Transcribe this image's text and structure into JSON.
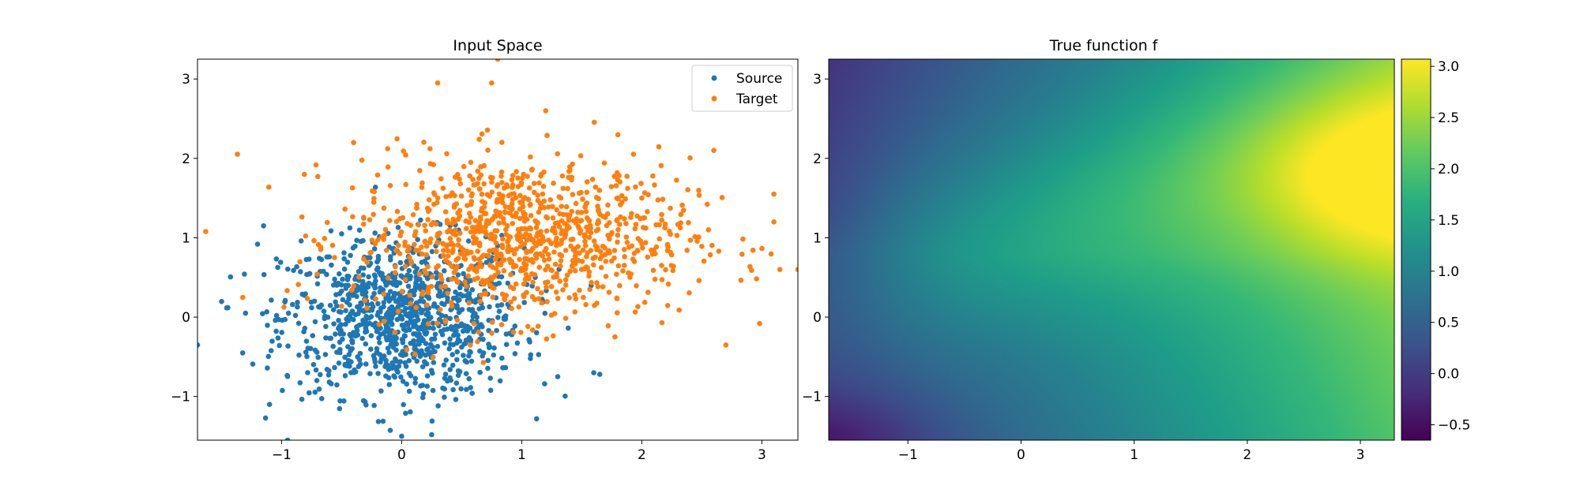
{
  "chart_data": [
    {
      "type": "scatter",
      "title": "Input Space",
      "xlim": [
        -1.7,
        3.3
      ],
      "ylim": [
        -1.55,
        3.25
      ],
      "xticks": [
        "−1",
        "0",
        "1",
        "2",
        "3"
      ],
      "yticks": [
        "−1",
        "0",
        "1",
        "2",
        "3"
      ],
      "legend_position": "top-right",
      "series": [
        {
          "name": "Source",
          "color": "#1f77b4",
          "center": [
            0.0,
            0.0
          ],
          "std": [
            0.5,
            0.5
          ],
          "count": 1000,
          "points_sample": [
            [
              -1.7,
              -0.35
            ],
            [
              -1.15,
              1.15
            ],
            [
              -1.2,
              0.92
            ],
            [
              -1.1,
              -1.1
            ],
            [
              -0.95,
              -1.55
            ],
            [
              -0.5,
              1.05
            ],
            [
              0.0,
              -1.5
            ],
            [
              0.25,
              -1.48
            ],
            [
              1.3,
              -0.75
            ],
            [
              1.6,
              -0.7
            ],
            [
              1.65,
              -0.72
            ],
            [
              -1.3,
              0.05
            ],
            [
              0.0,
              0.0
            ],
            [
              0.2,
              -0.1
            ],
            [
              -0.3,
              0.2
            ]
          ]
        },
        {
          "name": "Target",
          "color": "#ff7f0e",
          "center": [
            1.0,
            1.0
          ],
          "std": [
            0.7,
            0.5
          ],
          "count": 1000,
          "points_sample": [
            [
              0.8,
              3.25
            ],
            [
              0.3,
              2.95
            ],
            [
              0.75,
              2.95
            ],
            [
              3.3,
              0.6
            ],
            [
              3.15,
              0.6
            ],
            [
              2.7,
              -0.35
            ],
            [
              3.1,
              1.55
            ],
            [
              3.1,
              1.2
            ],
            [
              2.6,
              2.1
            ],
            [
              -0.4,
              2.2
            ],
            [
              1.2,
              2.6
            ],
            [
              1.8,
              1.5
            ],
            [
              2.0,
              1.5
            ]
          ]
        }
      ]
    },
    {
      "type": "heatmap",
      "title": "True function f",
      "xlim": [
        -1.7,
        3.3
      ],
      "ylim": [
        -1.55,
        3.25
      ],
      "xticks": [
        "−1",
        "0",
        "1",
        "2",
        "3"
      ],
      "yticks": [
        "−1",
        "0",
        "1",
        "2",
        "3"
      ],
      "colormap": "viridis",
      "colorbar": {
        "range": [
          -0.65,
          3.07
        ],
        "ticks": [
          "−0.5",
          "0.0",
          "0.5",
          "1.0",
          "1.5",
          "2.0",
          "2.5",
          "3.0"
        ]
      }
    }
  ]
}
